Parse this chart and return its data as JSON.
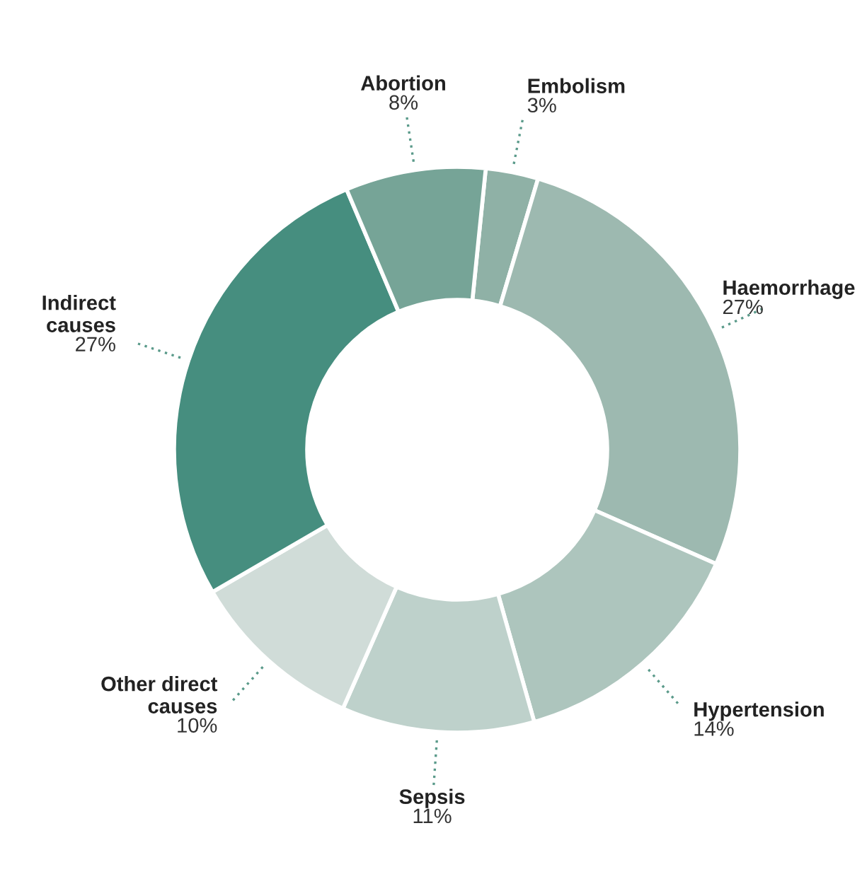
{
  "chart_data": {
    "type": "donut",
    "categories": [
      "Embolism",
      "Haemorrhage",
      "Hypertension",
      "Sepsis",
      "Other direct\ncauses",
      "Indirect\ncauses",
      "Abortion"
    ],
    "values": [
      3,
      27,
      14,
      11,
      10,
      27,
      8
    ],
    "value_labels": [
      "3%",
      "27%",
      "14%",
      "11%",
      "10%",
      "27%",
      "8%"
    ],
    "colors": [
      "#8fb1a6",
      "#9db9b0",
      "#adc5bd",
      "#bed1cb",
      "#d0dcd8",
      "#468e7f",
      "#76a497"
    ]
  }
}
